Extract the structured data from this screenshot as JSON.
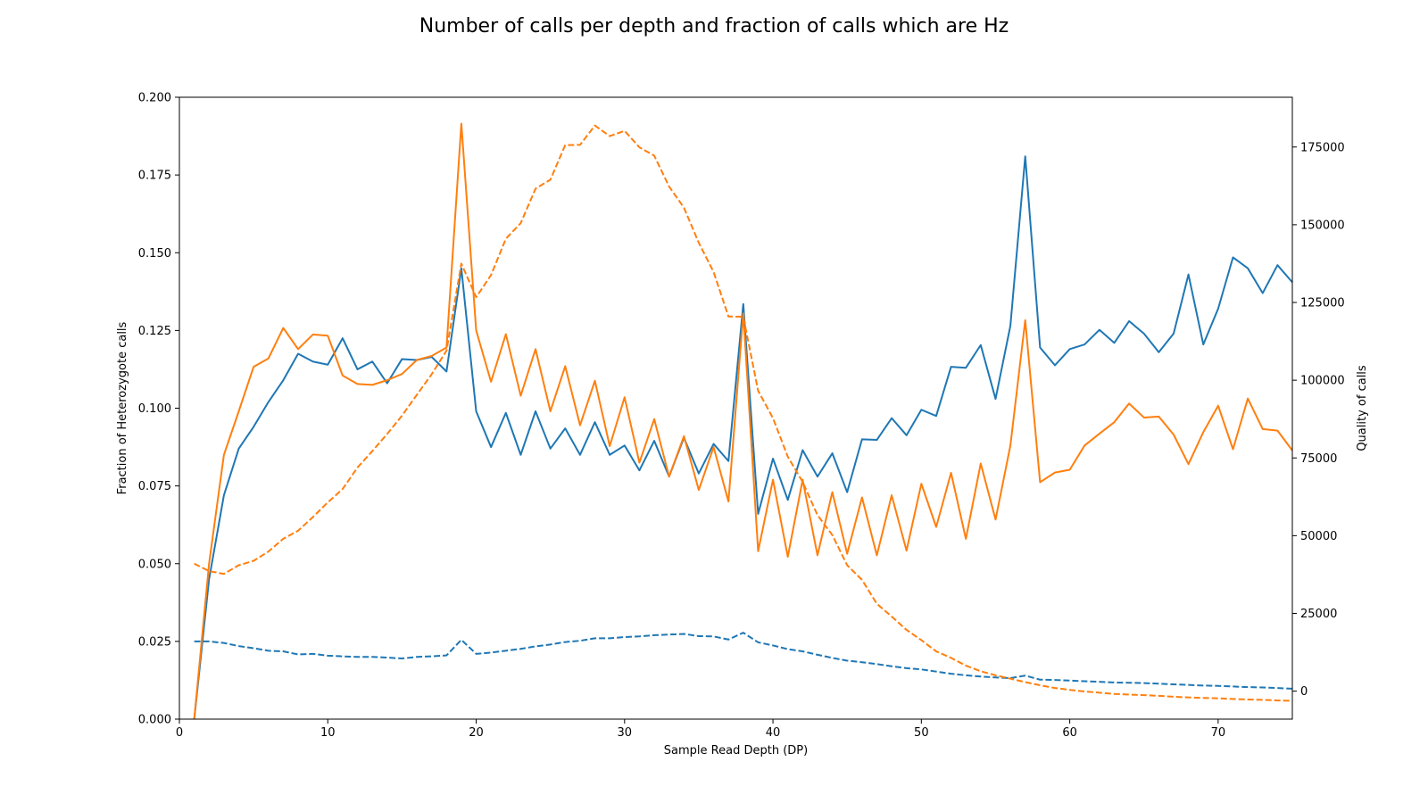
{
  "chart_data": {
    "type": "line",
    "title": "Number of calls per depth and fraction of calls which are Hz",
    "xlabel": "Sample Read Depth (DP)",
    "ylabel": "Fraction of Heterozygote calls",
    "y2label": "Quality of calls",
    "xlim": [
      0,
      75
    ],
    "ylim": [
      0,
      0.2
    ],
    "y2lim": [
      -9000,
      191000
    ],
    "xticks": [
      0,
      10,
      20,
      30,
      40,
      50,
      60,
      70
    ],
    "yticks": [
      0.0,
      0.025,
      0.05,
      0.075,
      0.1,
      0.125,
      0.15,
      0.175,
      0.2
    ],
    "ytick_labels": [
      "0.000",
      "0.025",
      "0.050",
      "0.075",
      "0.100",
      "0.125",
      "0.150",
      "0.175",
      "0.200"
    ],
    "y2ticks": [
      0,
      25000,
      50000,
      75000,
      100000,
      125000,
      150000,
      175000
    ],
    "grid": false,
    "colors": {
      "blue": "#1f77b4",
      "orange": "#ff7f0e"
    },
    "x": [
      1,
      2,
      3,
      4,
      5,
      6,
      7,
      8,
      9,
      10,
      11,
      12,
      13,
      14,
      15,
      16,
      17,
      18,
      19,
      20,
      21,
      22,
      23,
      24,
      25,
      26,
      27,
      28,
      29,
      30,
      31,
      32,
      33,
      34,
      35,
      36,
      37,
      38,
      39,
      40,
      41,
      42,
      43,
      44,
      45,
      46,
      47,
      48,
      49,
      50,
      51,
      52,
      53,
      54,
      55,
      56,
      57,
      58,
      59,
      60,
      61,
      62,
      63,
      64,
      65,
      66,
      67,
      68,
      69,
      70,
      71,
      72,
      73,
      74,
      75
    ],
    "series": [
      {
        "color": "#1f77b4",
        "style": "solid",
        "axis": "left",
        "values": [
          0.0,
          0.045,
          0.072,
          0.087,
          0.094,
          0.102,
          0.109,
          0.1175,
          0.115,
          0.114,
          0.1225,
          0.1125,
          0.115,
          0.108,
          0.1158,
          0.1155,
          0.1165,
          0.1118,
          0.145,
          0.099,
          0.0875,
          0.0985,
          0.085,
          0.099,
          0.087,
          0.0935,
          0.085,
          0.0955,
          0.085,
          0.088,
          0.08,
          0.0895,
          0.078,
          0.0905,
          0.079,
          0.0885,
          0.083,
          0.1335,
          0.066,
          0.0838,
          0.0705,
          0.0865,
          0.078,
          0.0855,
          0.073,
          0.09,
          0.0898,
          0.0968,
          0.0913,
          0.0995,
          0.0975,
          0.1133,
          0.113,
          0.1203,
          0.103,
          0.1265,
          0.181,
          0.1195,
          0.1138,
          0.119,
          0.1205,
          0.1252,
          0.121,
          0.128,
          0.124,
          0.118,
          0.124,
          0.143,
          0.1205,
          0.132,
          0.1485,
          0.145,
          0.137,
          0.146,
          0.1405
        ]
      },
      {
        "color": "#ff7f0e",
        "style": "solid",
        "axis": "left",
        "values": [
          0.0,
          0.05,
          0.085,
          0.099,
          0.1133,
          0.116,
          0.1258,
          0.119,
          0.1237,
          0.1233,
          0.1105,
          0.1078,
          0.1075,
          0.109,
          0.111,
          0.1155,
          0.1168,
          0.1195,
          0.1915,
          0.125,
          0.1085,
          0.1238,
          0.104,
          0.119,
          0.099,
          0.1135,
          0.0945,
          0.1088,
          0.0878,
          0.1035,
          0.0825,
          0.0965,
          0.078,
          0.091,
          0.0737,
          0.0875,
          0.07,
          0.1305,
          0.054,
          0.077,
          0.0522,
          0.077,
          0.0527,
          0.073,
          0.0532,
          0.0713,
          0.0527,
          0.072,
          0.0542,
          0.0757,
          0.0618,
          0.0792,
          0.058,
          0.0822,
          0.0642,
          0.088,
          0.1283,
          0.0762,
          0.0793,
          0.0802,
          0.088,
          0.0918,
          0.0955,
          0.1015,
          0.097,
          0.0973,
          0.0915,
          0.082,
          0.0923,
          0.1008,
          0.0868,
          0.1031,
          0.0933,
          0.0928,
          0.0864
        ]
      },
      {
        "color": "#1f77b4",
        "style": "dashed",
        "axis": "right",
        "values": [
          16000,
          16000,
          15500,
          14500,
          13800,
          13000,
          12800,
          11800,
          12000,
          11400,
          11200,
          11000,
          11000,
          10800,
          10500,
          11000,
          11200,
          11500,
          16500,
          12000,
          12400,
          13000,
          13600,
          14400,
          15000,
          15800,
          16200,
          17000,
          17000,
          17400,
          17600,
          18000,
          18200,
          18400,
          17700,
          17600,
          16600,
          18800,
          15700,
          14700,
          13500,
          12800,
          11700,
          10700,
          9800,
          9300,
          8700,
          8000,
          7400,
          7000,
          6300,
          5600,
          5100,
          4700,
          4400,
          4200,
          5000,
          3700,
          3600,
          3400,
          3200,
          3000,
          2800,
          2700,
          2600,
          2400,
          2200,
          2000,
          1800,
          1700,
          1500,
          1300,
          1200,
          1000,
          800
        ]
      },
      {
        "color": "#ff7f0e",
        "style": "dashed",
        "axis": "right",
        "values": [
          41000,
          38600,
          37700,
          40500,
          41900,
          44900,
          49000,
          51600,
          56000,
          60700,
          65000,
          71900,
          77200,
          82700,
          88600,
          95300,
          101900,
          109500,
          137500,
          126700,
          133800,
          145500,
          150500,
          161600,
          164500,
          175600,
          175700,
          181900,
          178500,
          180200,
          174900,
          172200,
          162300,
          155500,
          144200,
          134800,
          120500,
          120400,
          96600,
          87800,
          75400,
          67300,
          56600,
          50200,
          40500,
          35800,
          28100,
          24000,
          19700,
          16400,
          12800,
          10700,
          8200,
          6400,
          5100,
          4000,
          2900,
          1900,
          1000,
          400,
          -100,
          -500,
          -900,
          -1100,
          -1300,
          -1500,
          -1800,
          -2000,
          -2200,
          -2300,
          -2500,
          -2700,
          -2800,
          -3000,
          -3100
        ]
      }
    ]
  }
}
